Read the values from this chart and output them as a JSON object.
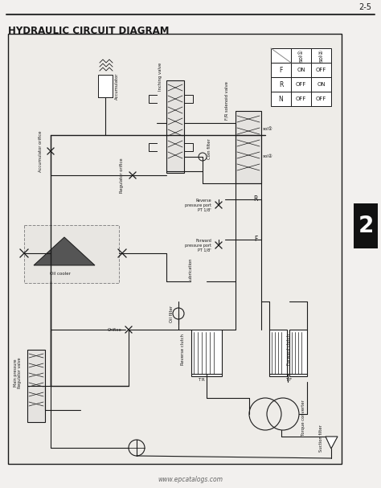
{
  "page_number": "2-5",
  "title": "HYDRAULIC CIRCUIT DIAGRAM",
  "bg": "#f2f0ee",
  "white": "#ffffff",
  "black": "#1a1a1a",
  "gray": "#888888",
  "lightgray": "#d8d5d0",
  "tab_color": "#111111",
  "tab_text": "2",
  "watermark": "www.epcatalogs.com",
  "table_headers_col": [
    "sol①",
    "sol②"
  ],
  "table_rows": [
    [
      "F",
      "ON",
      "OFF"
    ],
    [
      "R",
      "OFF",
      "ON"
    ],
    [
      "N",
      "OFF",
      "OFF"
    ]
  ]
}
